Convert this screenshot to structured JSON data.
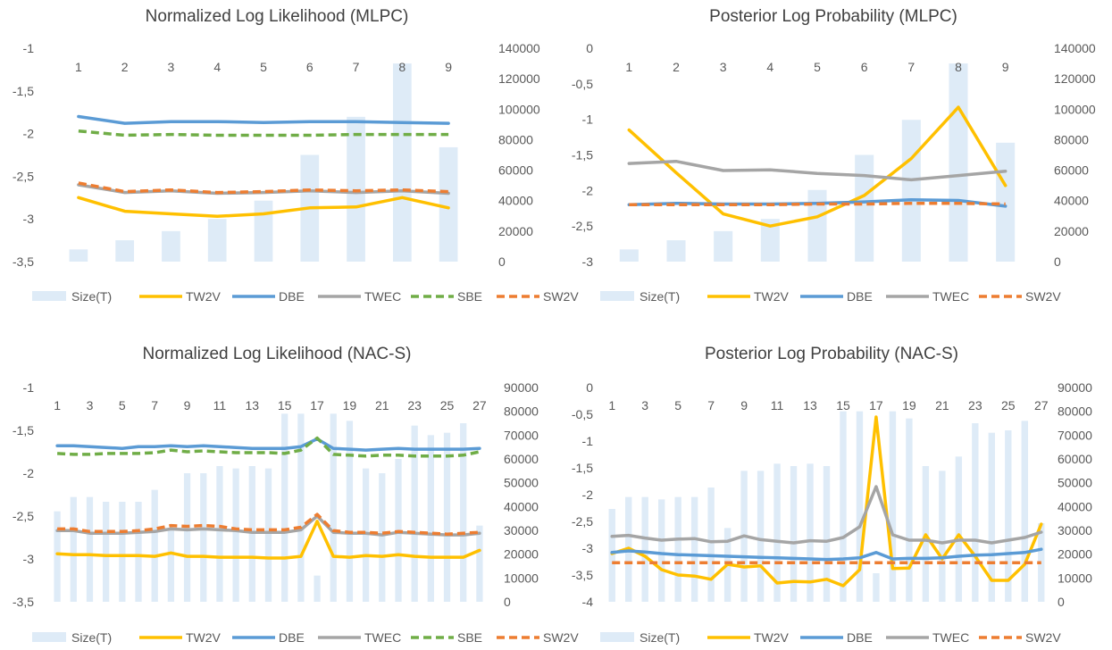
{
  "colors": {
    "size_bar": "#deebf7",
    "tw2v": "#ffc000",
    "dbe": "#5b9bd5",
    "twec": "#a5a5a5",
    "sbe": "#70ad47",
    "sw2v": "#ed7d31",
    "text": "#595959",
    "title": "#404040"
  },
  "chart_data": [
    {
      "type": "line",
      "title": "Normalized Log Likelihood (MLPC)",
      "categories": [
        "1",
        "2",
        "3",
        "4",
        "5",
        "6",
        "7",
        "8",
        "9"
      ],
      "ylim": [
        -3.5,
        -1
      ],
      "yticks": [
        "-1",
        "-1,5",
        "-2",
        "-2,5",
        "-3",
        "-3,5"
      ],
      "ytick_values": [
        -1,
        -1.5,
        -2,
        -2.5,
        -3,
        -3.5
      ],
      "y2lim": [
        0,
        140000
      ],
      "y2ticks": [
        "140000",
        "120000",
        "100000",
        "80000",
        "60000",
        "40000",
        "20000",
        "0"
      ],
      "y2tick_values": [
        140000,
        120000,
        100000,
        80000,
        60000,
        40000,
        20000,
        0
      ],
      "size_values": [
        8000,
        14000,
        20000,
        28000,
        40000,
        70000,
        95000,
        130000,
        75000
      ],
      "series": [
        {
          "name": "TW2V",
          "key": "tw2v",
          "dash": false,
          "values": [
            -2.75,
            -2.91,
            -2.94,
            -2.97,
            -2.94,
            -2.87,
            -2.86,
            -2.75,
            -2.87
          ]
        },
        {
          "name": "DBE",
          "key": "dbe",
          "dash": false,
          "values": [
            -1.8,
            -1.88,
            -1.86,
            -1.86,
            -1.87,
            -1.86,
            -1.86,
            -1.87,
            -1.88
          ]
        },
        {
          "name": "TWEC",
          "key": "twec",
          "dash": false,
          "values": [
            -2.6,
            -2.69,
            -2.67,
            -2.7,
            -2.69,
            -2.67,
            -2.69,
            -2.67,
            -2.7
          ]
        },
        {
          "name": "SBE",
          "key": "sbe",
          "dash": true,
          "values": [
            -1.97,
            -2.02,
            -2.01,
            -2.02,
            -2.02,
            -2.02,
            -2.01,
            -2.01,
            -2.01
          ]
        },
        {
          "name": "SW2V",
          "key": "sw2v",
          "dash": true,
          "values": [
            -2.58,
            -2.68,
            -2.66,
            -2.69,
            -2.68,
            -2.66,
            -2.67,
            -2.66,
            -2.68
          ]
        }
      ],
      "legend": [
        "Size(T)",
        "TW2V",
        "DBE",
        "TWEC",
        "SBE",
        "SW2V"
      ],
      "x_tick_labels": [
        "1",
        "2",
        "3",
        "4",
        "5",
        "6",
        "7",
        "8",
        "9"
      ]
    },
    {
      "type": "line",
      "title": "Posterior Log Probability (MLPC)",
      "categories": [
        "1",
        "2",
        "3",
        "4",
        "5",
        "6",
        "7",
        "8",
        "9"
      ],
      "ylim": [
        -3,
        0
      ],
      "yticks": [
        "0",
        "-0,5",
        "-1",
        "-1,5",
        "-2",
        "-2,5",
        "-3"
      ],
      "ytick_values": [
        0,
        -0.5,
        -1,
        -1.5,
        -2,
        -2.5,
        -3
      ],
      "y2lim": [
        0,
        140000
      ],
      "y2ticks": [
        "140000",
        "120000",
        "100000",
        "80000",
        "60000",
        "40000",
        "20000",
        "0"
      ],
      "y2tick_values": [
        140000,
        120000,
        100000,
        80000,
        60000,
        40000,
        20000,
        0
      ],
      "size_values": [
        8000,
        14000,
        20000,
        28000,
        47000,
        70000,
        93000,
        130000,
        78000
      ],
      "series": [
        {
          "name": "TW2V",
          "key": "tw2v",
          "dash": false,
          "values": [
            -1.15,
            -1.75,
            -2.33,
            -2.5,
            -2.37,
            -2.07,
            -1.55,
            -0.83,
            -1.93
          ]
        },
        {
          "name": "DBE",
          "key": "dbe",
          "dash": false,
          "values": [
            -2.2,
            -2.18,
            -2.19,
            -2.19,
            -2.18,
            -2.16,
            -2.13,
            -2.14,
            -2.22
          ]
        },
        {
          "name": "TWEC",
          "key": "twec",
          "dash": false,
          "values": [
            -1.62,
            -1.59,
            -1.72,
            -1.71,
            -1.76,
            -1.79,
            -1.85,
            -1.79,
            -1.73
          ]
        },
        {
          "name": "SW2V",
          "key": "sw2v",
          "dash": true,
          "values": [
            -2.2,
            -2.2,
            -2.2,
            -2.2,
            -2.19,
            -2.19,
            -2.18,
            -2.18,
            -2.19
          ]
        }
      ],
      "legend": [
        "Size(T)",
        "TW2V",
        "DBE",
        "TWEC",
        "SW2V"
      ],
      "x_tick_labels": [
        "1",
        "2",
        "3",
        "4",
        "5",
        "6",
        "7",
        "8",
        "9"
      ]
    },
    {
      "type": "line",
      "title": "Normalized Log Likelihood (NAC-S)",
      "categories": [
        "1",
        "2",
        "3",
        "4",
        "5",
        "6",
        "7",
        "8",
        "9",
        "10",
        "11",
        "12",
        "13",
        "14",
        "15",
        "16",
        "17",
        "18",
        "19",
        "20",
        "21",
        "22",
        "23",
        "24",
        "25",
        "26",
        "27"
      ],
      "ylim": [
        -3.5,
        -1
      ],
      "yticks": [
        "-1",
        "-1,5",
        "-2",
        "-2,5",
        "-3",
        "-3,5"
      ],
      "ytick_values": [
        -1,
        -1.5,
        -2,
        -2.5,
        -3,
        -3.5
      ],
      "y2lim": [
        0,
        90000
      ],
      "y2ticks": [
        "90000",
        "80000",
        "70000",
        "60000",
        "50000",
        "40000",
        "30000",
        "20000",
        "10000",
        "0"
      ],
      "y2tick_values": [
        90000,
        80000,
        70000,
        60000,
        50000,
        40000,
        30000,
        20000,
        10000,
        0
      ],
      "size_values": [
        38000,
        44000,
        44000,
        42000,
        42000,
        42000,
        47000,
        31000,
        54000,
        54000,
        57000,
        56000,
        57000,
        56000,
        79000,
        79000,
        11000,
        79000,
        76000,
        56000,
        54000,
        60000,
        74000,
        70000,
        71000,
        75000,
        32000
      ],
      "series": [
        {
          "name": "TW2V",
          "key": "tw2v",
          "dash": false,
          "values": [
            -2.94,
            -2.95,
            -2.95,
            -2.96,
            -2.96,
            -2.96,
            -2.97,
            -2.93,
            -2.97,
            -2.97,
            -2.98,
            -2.98,
            -2.98,
            -2.99,
            -2.99,
            -2.97,
            -2.56,
            -2.97,
            -2.98,
            -2.96,
            -2.97,
            -2.95,
            -2.97,
            -2.98,
            -2.98,
            -2.98,
            -2.9
          ]
        },
        {
          "name": "DBE",
          "key": "dbe",
          "dash": false,
          "values": [
            -1.68,
            -1.68,
            -1.69,
            -1.7,
            -1.71,
            -1.69,
            -1.69,
            -1.68,
            -1.69,
            -1.68,
            -1.69,
            -1.7,
            -1.71,
            -1.71,
            -1.71,
            -1.69,
            -1.6,
            -1.71,
            -1.72,
            -1.73,
            -1.72,
            -1.71,
            -1.72,
            -1.72,
            -1.72,
            -1.72,
            -1.71
          ]
        },
        {
          "name": "TWEC",
          "key": "twec",
          "dash": false,
          "values": [
            -2.67,
            -2.67,
            -2.7,
            -2.7,
            -2.7,
            -2.69,
            -2.68,
            -2.65,
            -2.66,
            -2.65,
            -2.66,
            -2.67,
            -2.69,
            -2.69,
            -2.69,
            -2.66,
            -2.5,
            -2.69,
            -2.7,
            -2.7,
            -2.72,
            -2.69,
            -2.7,
            -2.71,
            -2.72,
            -2.72,
            -2.7
          ]
        },
        {
          "name": "SBE",
          "key": "sbe",
          "dash": true,
          "values": [
            -1.77,
            -1.78,
            -1.78,
            -1.77,
            -1.77,
            -1.77,
            -1.76,
            -1.73,
            -1.75,
            -1.74,
            -1.75,
            -1.76,
            -1.76,
            -1.76,
            -1.77,
            -1.73,
            -1.59,
            -1.78,
            -1.79,
            -1.8,
            -1.79,
            -1.79,
            -1.8,
            -1.8,
            -1.8,
            -1.79,
            -1.75
          ]
        },
        {
          "name": "SW2V",
          "key": "sw2v",
          "dash": true,
          "values": [
            -2.65,
            -2.65,
            -2.68,
            -2.68,
            -2.68,
            -2.67,
            -2.65,
            -2.61,
            -2.62,
            -2.61,
            -2.62,
            -2.65,
            -2.66,
            -2.66,
            -2.66,
            -2.63,
            -2.48,
            -2.67,
            -2.69,
            -2.69,
            -2.7,
            -2.68,
            -2.69,
            -2.7,
            -2.71,
            -2.7,
            -2.69
          ]
        }
      ],
      "legend": [
        "Size(T)",
        "TW2V",
        "DBE",
        "TWEC",
        "SBE",
        "SW2V"
      ],
      "x_tick_labels": [
        "1",
        "3",
        "5",
        "7",
        "9",
        "11",
        "13",
        "15",
        "17",
        "19",
        "21",
        "23",
        "25",
        "27"
      ]
    },
    {
      "type": "line",
      "title": "Posterior Log Probability (NAC-S)",
      "categories": [
        "1",
        "2",
        "3",
        "4",
        "5",
        "6",
        "7",
        "8",
        "9",
        "10",
        "11",
        "12",
        "13",
        "14",
        "15",
        "16",
        "17",
        "18",
        "19",
        "20",
        "21",
        "22",
        "23",
        "24",
        "25",
        "26",
        "27"
      ],
      "ylim": [
        -4,
        0
      ],
      "yticks": [
        "0",
        "-0,5",
        "-1",
        "-1,5",
        "-2",
        "-2,5",
        "-3",
        "-3,5",
        "-4"
      ],
      "ytick_values": [
        0,
        -0.5,
        -1,
        -1.5,
        -2,
        -2.5,
        -3,
        -3.5,
        -4
      ],
      "y2lim": [
        0,
        90000
      ],
      "y2ticks": [
        "90000",
        "80000",
        "70000",
        "60000",
        "50000",
        "40000",
        "30000",
        "20000",
        "10000",
        "0"
      ],
      "y2tick_values": [
        90000,
        80000,
        70000,
        60000,
        50000,
        40000,
        30000,
        20000,
        10000,
        0
      ],
      "size_values": [
        39000,
        44000,
        44000,
        43000,
        44000,
        44000,
        48000,
        31000,
        55000,
        55000,
        58000,
        57000,
        58000,
        57000,
        80000,
        80000,
        12000,
        80000,
        77000,
        57000,
        55000,
        61000,
        75000,
        71000,
        72000,
        76000,
        33000
      ],
      "series": [
        {
          "name": "TW2V",
          "key": "tw2v",
          "dash": false,
          "values": [
            -3.1,
            -3.0,
            -3.15,
            -3.4,
            -3.5,
            -3.52,
            -3.58,
            -3.3,
            -3.35,
            -3.33,
            -3.65,
            -3.62,
            -3.63,
            -3.58,
            -3.7,
            -3.4,
            -0.55,
            -3.38,
            -3.37,
            -2.75,
            -3.2,
            -2.75,
            -3.15,
            -3.6,
            -3.6,
            -3.3,
            -2.55
          ]
        },
        {
          "name": "DBE",
          "key": "dbe",
          "dash": false,
          "values": [
            -3.08,
            -3.05,
            -3.07,
            -3.1,
            -3.12,
            -3.13,
            -3.14,
            -3.15,
            -3.16,
            -3.17,
            -3.18,
            -3.19,
            -3.2,
            -3.21,
            -3.2,
            -3.18,
            -3.08,
            -3.2,
            -3.19,
            -3.19,
            -3.18,
            -3.15,
            -3.13,
            -3.12,
            -3.1,
            -3.08,
            -3.02
          ]
        },
        {
          "name": "TWEC",
          "key": "twec",
          "dash": false,
          "values": [
            -2.78,
            -2.76,
            -2.81,
            -2.85,
            -2.83,
            -2.82,
            -2.88,
            -2.87,
            -2.77,
            -2.84,
            -2.87,
            -2.9,
            -2.86,
            -2.87,
            -2.8,
            -2.6,
            -1.85,
            -2.75,
            -2.85,
            -2.85,
            -2.9,
            -2.85,
            -2.85,
            -2.9,
            -2.85,
            -2.8,
            -2.7
          ]
        },
        {
          "name": "SW2V",
          "key": "sw2v",
          "dash": true,
          "values": [
            -3.27,
            -3.27,
            -3.27,
            -3.27,
            -3.27,
            -3.27,
            -3.27,
            -3.27,
            -3.27,
            -3.27,
            -3.27,
            -3.27,
            -3.27,
            -3.27,
            -3.27,
            -3.27,
            -3.27,
            -3.27,
            -3.27,
            -3.27,
            -3.27,
            -3.27,
            -3.27,
            -3.27,
            -3.27,
            -3.27,
            -3.27
          ]
        }
      ],
      "legend": [
        "Size(T)",
        "TW2V",
        "DBE",
        "TWEC",
        "SW2V"
      ],
      "x_tick_labels": [
        "1",
        "3",
        "5",
        "7",
        "9",
        "11",
        "13",
        "15",
        "17",
        "19",
        "21",
        "23",
        "25",
        "27"
      ]
    }
  ]
}
